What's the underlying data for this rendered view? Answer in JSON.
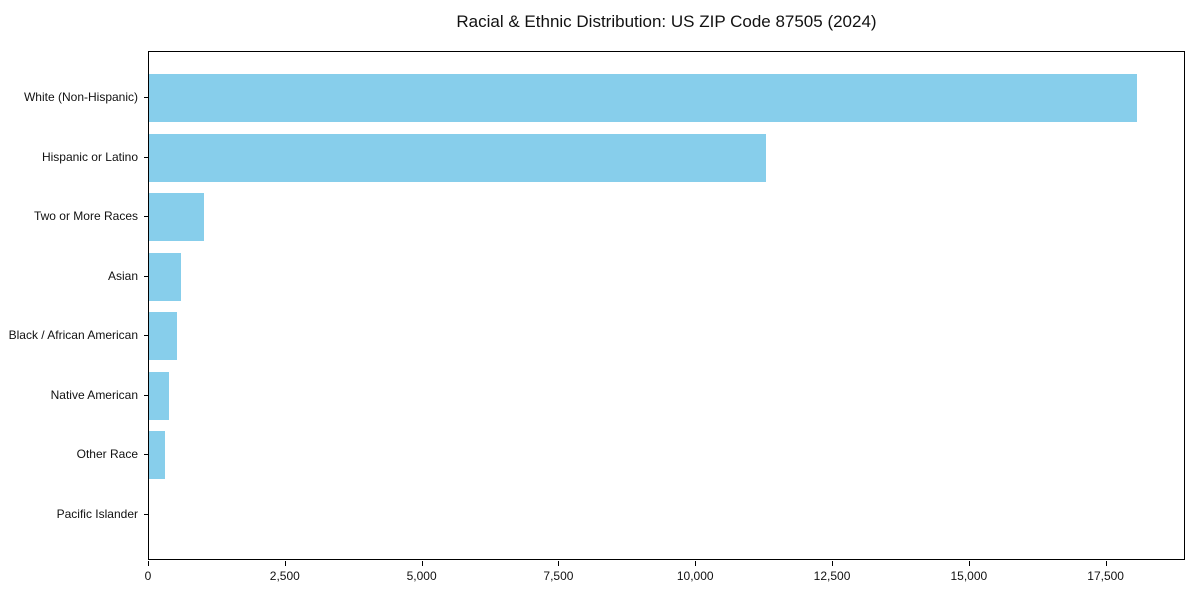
{
  "chart_data": {
    "type": "bar",
    "orientation": "horizontal",
    "title": "Racial & Ethnic Distribution: US ZIP Code 87505 (2024)",
    "categories": [
      "White (Non-Hispanic)",
      "Hispanic or Latino",
      "Two or More Races",
      "Asian",
      "Black / African American",
      "Native American",
      "Other Race",
      "Pacific Islander"
    ],
    "values": [
      18050,
      11280,
      1000,
      585,
      520,
      360,
      300,
      0
    ],
    "xlabel": "",
    "ylabel": "",
    "xlim": [
      0,
      18950
    ],
    "xticks": [
      {
        "value": 0,
        "label": "0"
      },
      {
        "value": 2500,
        "label": "2,500"
      },
      {
        "value": 5000,
        "label": "5,000"
      },
      {
        "value": 7500,
        "label": "7,500"
      },
      {
        "value": 10000,
        "label": "10,000"
      },
      {
        "value": 12500,
        "label": "12,500"
      },
      {
        "value": 15000,
        "label": "15,000"
      },
      {
        "value": 17500,
        "label": "17,500"
      }
    ],
    "bar_color": "#87CEEB",
    "background_color": "#ffffff",
    "plot_border_color": "#000000",
    "grid": false,
    "legend": null
  }
}
